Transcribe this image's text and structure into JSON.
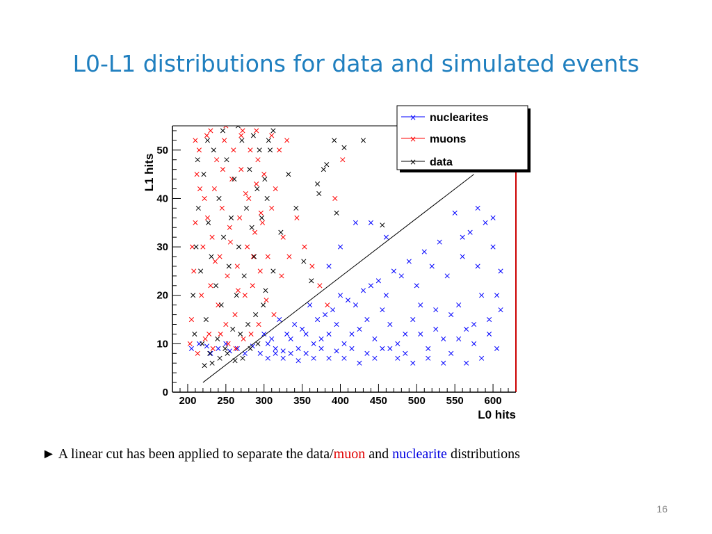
{
  "slide": {
    "title": "L0-L1 distributions for data and simulated events",
    "page_number": "16"
  },
  "caption": {
    "bullet": "►",
    "part1": " A linear cut has been applied to separate the data/",
    "muon_word": "muon",
    "part2": " and ",
    "nuclearite_word": "nuclearite",
    "part3": " distributions",
    "muon_color": "#e00000",
    "nuclearite_color": "#0000e0"
  },
  "chart_data": {
    "type": "scatter",
    "xlabel": "L0 hits",
    "ylabel": "L1 hits",
    "xlim": [
      180,
      630
    ],
    "ylim": [
      0,
      55
    ],
    "x_ticks": [
      200,
      250,
      300,
      350,
      400,
      450,
      500,
      550,
      600
    ],
    "y_ticks": [
      0,
      10,
      20,
      30,
      40,
      50
    ],
    "x_tick_labels": [
      "200",
      "250",
      "300",
      "350",
      "400",
      "450",
      "500",
      "550",
      "600"
    ],
    "y_tick_labels": [
      "0",
      "10",
      "20",
      "30",
      "40",
      "50"
    ],
    "marker": "x",
    "legend_position": "top-right",
    "cut_line": {
      "x": [
        220,
        575
      ],
      "y": [
        2,
        45
      ]
    },
    "series": [
      {
        "name": "nuclearites",
        "color": "#0000ff",
        "distribution": "dense band of points spanning L0 200–610, L1 ~6–38, concentrated at L1 7–15 and rising with L0",
        "points": [
          [
            205,
            9
          ],
          [
            215,
            10
          ],
          [
            225,
            9.5
          ],
          [
            230,
            8
          ],
          [
            240,
            9
          ],
          [
            250,
            10
          ],
          [
            255,
            8.5
          ],
          [
            265,
            9
          ],
          [
            275,
            8
          ],
          [
            285,
            9.5
          ],
          [
            295,
            8
          ],
          [
            305,
            10
          ],
          [
            315,
            9
          ],
          [
            325,
            8.5
          ],
          [
            335,
            11
          ],
          [
            345,
            9
          ],
          [
            355,
            8
          ],
          [
            365,
            10
          ],
          [
            375,
            9
          ],
          [
            385,
            12
          ],
          [
            395,
            8.5
          ],
          [
            405,
            10
          ],
          [
            415,
            9
          ],
          [
            425,
            13
          ],
          [
            435,
            8
          ],
          [
            445,
            11
          ],
          [
            455,
            9
          ],
          [
            465,
            14
          ],
          [
            475,
            10
          ],
          [
            485,
            8
          ],
          [
            495,
            15
          ],
          [
            505,
            12
          ],
          [
            515,
            9
          ],
          [
            525,
            17
          ],
          [
            535,
            11
          ],
          [
            545,
            8
          ],
          [
            555,
            18
          ],
          [
            565,
            13
          ],
          [
            575,
            10
          ],
          [
            585,
            20
          ],
          [
            595,
            15
          ],
          [
            605,
            9
          ],
          [
            300,
            12
          ],
          [
            320,
            15
          ],
          [
            340,
            14
          ],
          [
            360,
            18
          ],
          [
            380,
            16
          ],
          [
            400,
            20
          ],
          [
            420,
            18
          ],
          [
            440,
            22
          ],
          [
            460,
            20
          ],
          [
            480,
            24
          ],
          [
            500,
            22
          ],
          [
            520,
            26
          ],
          [
            540,
            24
          ],
          [
            560,
            28
          ],
          [
            580,
            26
          ],
          [
            600,
            30
          ],
          [
            610,
            25
          ],
          [
            590,
            35
          ],
          [
            570,
            33
          ],
          [
            550,
            37
          ],
          [
            530,
            31
          ],
          [
            510,
            29
          ],
          [
            490,
            27
          ],
          [
            470,
            25
          ],
          [
            450,
            23
          ],
          [
            430,
            21
          ],
          [
            410,
            19
          ],
          [
            390,
            17
          ],
          [
            370,
            15
          ],
          [
            350,
            13
          ],
          [
            330,
            12
          ],
          [
            310,
            11
          ],
          [
            420,
            35
          ],
          [
            440,
            35
          ],
          [
            400,
            30
          ],
          [
            460,
            32
          ],
          [
            385,
            26
          ],
          [
            600,
            36
          ],
          [
            580,
            38
          ],
          [
            560,
            32
          ],
          [
            610,
            17
          ],
          [
            605,
            20
          ],
          [
            595,
            12
          ],
          [
            585,
            7
          ],
          [
            575,
            14
          ],
          [
            565,
            6
          ],
          [
            555,
            11
          ],
          [
            545,
            16
          ],
          [
            535,
            6
          ],
          [
            525,
            13
          ],
          [
            515,
            7
          ],
          [
            505,
            18
          ],
          [
            495,
            6
          ],
          [
            485,
            12
          ],
          [
            475,
            7
          ],
          [
            465,
            9
          ],
          [
            455,
            17
          ],
          [
            445,
            7
          ],
          [
            435,
            15
          ],
          [
            425,
            6
          ],
          [
            415,
            12
          ],
          [
            405,
            7
          ],
          [
            395,
            14
          ],
          [
            385,
            7
          ],
          [
            375,
            11
          ],
          [
            365,
            7
          ],
          [
            355,
            12
          ],
          [
            345,
            6.5
          ],
          [
            335,
            8
          ],
          [
            325,
            7
          ],
          [
            315,
            8
          ],
          [
            305,
            7
          ]
        ]
      },
      {
        "name": "muons",
        "color": "#ff0000",
        "distribution": "dense vertical cluster at L0 ~200–300, L1 ~7–55",
        "points": [
          [
            205,
            15
          ],
          [
            208,
            25
          ],
          [
            210,
            35
          ],
          [
            212,
            45
          ],
          [
            215,
            50
          ],
          [
            218,
            20
          ],
          [
            220,
            30
          ],
          [
            222,
            40
          ],
          [
            225,
            53
          ],
          [
            228,
            12
          ],
          [
            230,
            22
          ],
          [
            232,
            32
          ],
          [
            235,
            42
          ],
          [
            238,
            48
          ],
          [
            240,
            18
          ],
          [
            242,
            28
          ],
          [
            245,
            38
          ],
          [
            248,
            52
          ],
          [
            250,
            14
          ],
          [
            252,
            24
          ],
          [
            255,
            34
          ],
          [
            258,
            44
          ],
          [
            260,
            50
          ],
          [
            262,
            16
          ],
          [
            265,
            26
          ],
          [
            268,
            36
          ],
          [
            270,
            46
          ],
          [
            272,
            54
          ],
          [
            275,
            20
          ],
          [
            278,
            30
          ],
          [
            280,
            40
          ],
          [
            282,
            50
          ],
          [
            285,
            22
          ],
          [
            288,
            33
          ],
          [
            290,
            43
          ],
          [
            292,
            48
          ],
          [
            295,
            25
          ],
          [
            298,
            35
          ],
          [
            300,
            45
          ],
          [
            305,
            28
          ],
          [
            310,
            38
          ],
          [
            315,
            42
          ],
          [
            320,
            50
          ],
          [
            325,
            32
          ],
          [
            330,
            52
          ],
          [
            203,
            10
          ],
          [
            213,
            8
          ],
          [
            223,
            11
          ],
          [
            233,
            9
          ],
          [
            243,
            12
          ],
          [
            253,
            10
          ],
          [
            263,
            9
          ],
          [
            273,
            11
          ],
          [
            283,
            12
          ],
          [
            293,
            14
          ],
          [
            303,
            19
          ],
          [
            313,
            16
          ],
          [
            323,
            24
          ],
          [
            333,
            28
          ],
          [
            343,
            36
          ],
          [
            353,
            30
          ],
          [
            363,
            26
          ],
          [
            373,
            22
          ],
          [
            383,
            18
          ],
          [
            393,
            40
          ],
          [
            403,
            48
          ],
          [
            210,
            52
          ],
          [
            230,
            54
          ],
          [
            250,
            55
          ],
          [
            270,
            53
          ],
          [
            290,
            54
          ],
          [
            310,
            53
          ],
          [
            206,
            30
          ],
          [
            216,
            42
          ],
          [
            226,
            36
          ],
          [
            236,
            27
          ],
          [
            246,
            46
          ],
          [
            256,
            31
          ],
          [
            266,
            21
          ],
          [
            276,
            41
          ],
          [
            286,
            28
          ],
          [
            296,
            37
          ]
        ]
      },
      {
        "name": "data",
        "color": "#000000",
        "distribution": "vertical cluster at L0 ~200–300 overlapping the muons, with sparse outliers",
        "points": [
          [
            207,
            20
          ],
          [
            211,
            30
          ],
          [
            214,
            38
          ],
          [
            217,
            25
          ],
          [
            221,
            45
          ],
          [
            224,
            15
          ],
          [
            227,
            35
          ],
          [
            231,
            28
          ],
          [
            234,
            50
          ],
          [
            237,
            22
          ],
          [
            241,
            40
          ],
          [
            244,
            18
          ],
          [
            247,
            32
          ],
          [
            251,
            48
          ],
          [
            254,
            26
          ],
          [
            257,
            36
          ],
          [
            261,
            44
          ],
          [
            264,
            20
          ],
          [
            267,
            30
          ],
          [
            271,
            52
          ],
          [
            274,
            24
          ],
          [
            277,
            38
          ],
          [
            281,
            46
          ],
          [
            284,
            34
          ],
          [
            287,
            28
          ],
          [
            291,
            42
          ],
          [
            294,
            50
          ],
          [
            297,
            36
          ],
          [
            301,
            44
          ],
          [
            304,
            40
          ],
          [
            308,
            50
          ],
          [
            312,
            54
          ],
          [
            209,
            12
          ],
          [
            219,
            10
          ],
          [
            229,
            8
          ],
          [
            239,
            11
          ],
          [
            249,
            9
          ],
          [
            259,
            13
          ],
          [
            269,
            12
          ],
          [
            279,
            14
          ],
          [
            289,
            16
          ],
          [
            299,
            18
          ],
          [
            222,
            5.5
          ],
          [
            232,
            6
          ],
          [
            242,
            7
          ],
          [
            252,
            8
          ],
          [
            262,
            6.5
          ],
          [
            272,
            7
          ],
          [
            282,
            9
          ],
          [
            292,
            10
          ],
          [
            302,
            21
          ],
          [
            312,
            25
          ],
          [
            322,
            33
          ],
          [
            332,
            45
          ],
          [
            342,
            38
          ],
          [
            352,
            27
          ],
          [
            362,
            23
          ],
          [
            372,
            41
          ],
          [
            382,
            47
          ],
          [
            392,
            52
          ],
          [
            405,
            50.5
          ],
          [
            430,
            52
          ],
          [
            455,
            34.5
          ],
          [
            370,
            43
          ],
          [
            378,
            46
          ],
          [
            395,
            37
          ],
          [
            213,
            48
          ],
          [
            226,
            52
          ],
          [
            246,
            54
          ],
          [
            266,
            55
          ],
          [
            286,
            53
          ],
          [
            306,
            52
          ]
        ]
      }
    ]
  }
}
